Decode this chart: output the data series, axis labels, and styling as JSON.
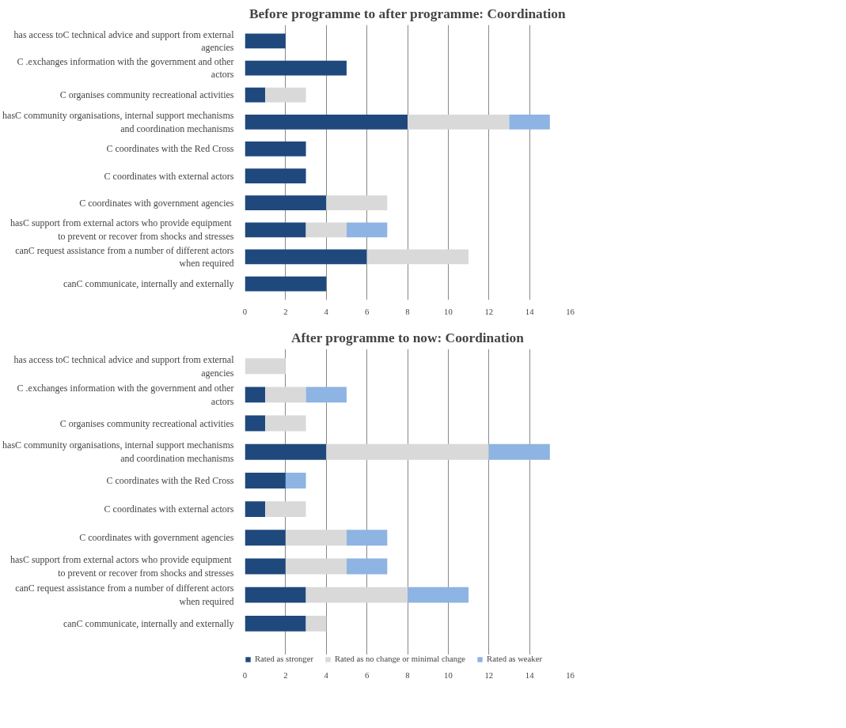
{
  "chart_data": [
    {
      "type": "bar",
      "orientation": "horizontal",
      "stacked": true,
      "title": "Before programme to after programme: Coordination",
      "categories": [
        "has access toC technical advice and support from external agencies",
        "C .exchanges information with the government and other actors",
        "C organises community recreational activities",
        "hasC community organisations, internal support mechanisms and coordination mechanisms",
        "C coordinates with the Red Cross",
        "C coordinates with external actors",
        "C coordinates with government agencies",
        "hasC  support from external actors who provide equipment to prevent or recover from shocks and stresses",
        "canC request assistance from a number of different actors when required",
        "canC communicate, internally and externally"
      ],
      "series": [
        {
          "color": "#1f497d",
          "values": [
            2,
            5,
            1,
            8,
            3,
            3,
            4,
            3,
            6,
            4
          ]
        },
        {
          "color": "#d9d9d9",
          "values": [
            0,
            0,
            2,
            5,
            0,
            0,
            3,
            2,
            5,
            0
          ]
        },
        {
          "color": "#8db4e2",
          "values": [
            0,
            0,
            0,
            2,
            0,
            0,
            0,
            2,
            0,
            0
          ]
        }
      ],
      "xlim": [
        0,
        16
      ],
      "xticks": [
        0,
        2,
        4,
        6,
        8,
        10,
        12,
        14,
        16
      ],
      "grid": "x"
    },
    {
      "type": "bar",
      "orientation": "horizontal",
      "stacked": true,
      "title": "After programme to now: Coordination",
      "categories": [
        "has access toC technical advice and support from external agencies",
        "C .exchanges information with the government and other actors",
        "C organises community recreational activities",
        "hasC community organisations, internal support mechanisms and coordination mechanisms",
        "C coordinates with the Red Cross",
        "C coordinates with external actors",
        "C coordinates with government agencies",
        "hasC  support from external actors who provide equipment to prevent or recover from shocks and stresses",
        "canC request assistance from a number of different actors when required",
        "canC communicate, internally and externally"
      ],
      "series": [
        {
          "name": "Rated as stronger",
          "color": "#1f497d",
          "values": [
            0,
            1,
            1,
            4,
            2,
            1,
            2,
            2,
            3,
            3
          ]
        },
        {
          "name": "Rated as no change or minimal change",
          "color": "#d9d9d9",
          "values": [
            2,
            2,
            2,
            8,
            0,
            2,
            3,
            3,
            5,
            1
          ]
        },
        {
          "name": "Rated as weaker",
          "color": "#8db4e2",
          "values": [
            0,
            2,
            0,
            3,
            1,
            0,
            2,
            2,
            3,
            0
          ]
        }
      ],
      "xlim": [
        0,
        16
      ],
      "xticks": [
        0,
        2,
        4,
        6,
        8,
        10,
        12,
        14,
        16
      ],
      "grid": "x",
      "legend": "bottom"
    }
  ]
}
